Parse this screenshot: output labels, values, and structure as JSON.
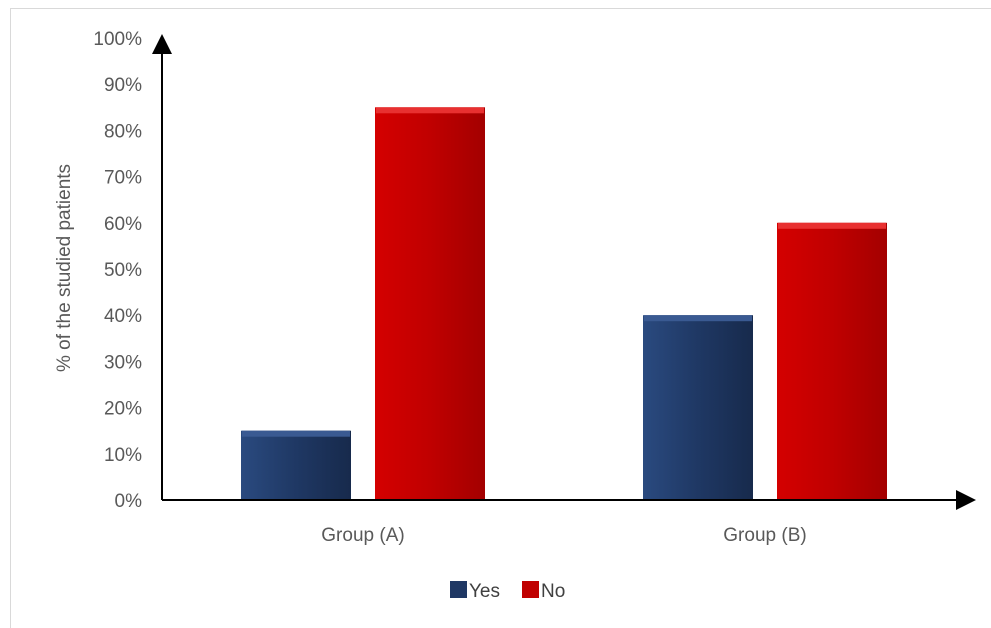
{
  "chart_data": {
    "type": "bar",
    "categories": [
      "Group (A)",
      "Group (B)"
    ],
    "series": [
      {
        "name": "Yes",
        "values": [
          15,
          40
        ],
        "color": "#1f3864"
      },
      {
        "name": "No",
        "values": [
          85,
          60
        ],
        "color": "#c00000"
      }
    ],
    "ylabel": "% of the studied patients",
    "ylim": [
      0,
      100
    ],
    "yticks": [
      "0%",
      "10%",
      "20%",
      "30%",
      "40%",
      "50%",
      "60%",
      "70%",
      "80%",
      "90%",
      "100%"
    ],
    "legend": "bottom",
    "grid": false
  }
}
